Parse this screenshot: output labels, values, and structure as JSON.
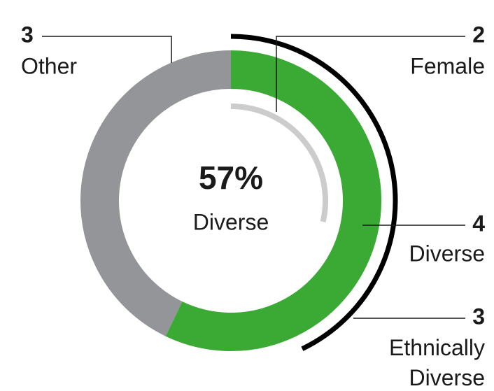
{
  "chart_data": {
    "type": "donut",
    "categories": [
      "Diverse",
      "Other"
    ],
    "values": [
      4,
      3
    ],
    "colors": [
      "#3aaa35",
      "#939598"
    ],
    "center_label": "57%",
    "center_text": "Diverse",
    "overlay_arcs": [
      {
        "name": "Female",
        "value": 2,
        "color": "#cccccc"
      },
      {
        "name": "Ethnically Diverse",
        "value": 3,
        "color": "#000000"
      }
    ]
  }
}
